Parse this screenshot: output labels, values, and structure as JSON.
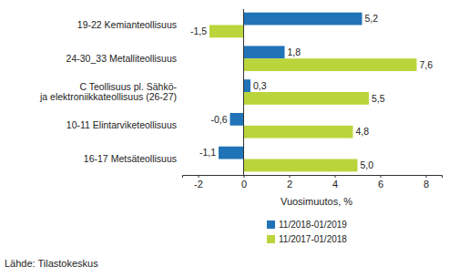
{
  "chart_data": {
    "type": "bar",
    "orientation": "horizontal",
    "categories": [
      "19-22 Kemianteollisuus",
      "24-30_33 Metalliteollisuus",
      "C Teollisuus pl. Sähkö-\nja elektroniikkateollisuus (26-27)",
      "10-11 Elintarviketeollisuus",
      "16-17 Metsäteollisuus"
    ],
    "series": [
      {
        "name": "11/2018-01/2019",
        "color": "#2173b8",
        "values": [
          5.2,
          1.8,
          0.3,
          -0.6,
          -1.1
        ],
        "value_labels": [
          "5,2",
          "1,8",
          "0,3",
          "-0,6",
          "-1,1"
        ]
      },
      {
        "name": "11/2017-01/2018",
        "color": "#b9d53b",
        "values": [
          -1.5,
          7.6,
          5.5,
          4.8,
          5.0
        ],
        "value_labels": [
          "-1,5",
          "7,6",
          "5,5",
          "4,8",
          "5,0"
        ]
      }
    ],
    "xlabel": "Vuosimuutos, %",
    "xlim": [
      -2.7,
      8.7
    ],
    "xticks": [
      -2,
      0,
      2,
      4,
      6,
      8
    ],
    "grid": false,
    "legend": "bottom",
    "data_labels": true,
    "source": "Lähde: Tilastokeskus"
  }
}
